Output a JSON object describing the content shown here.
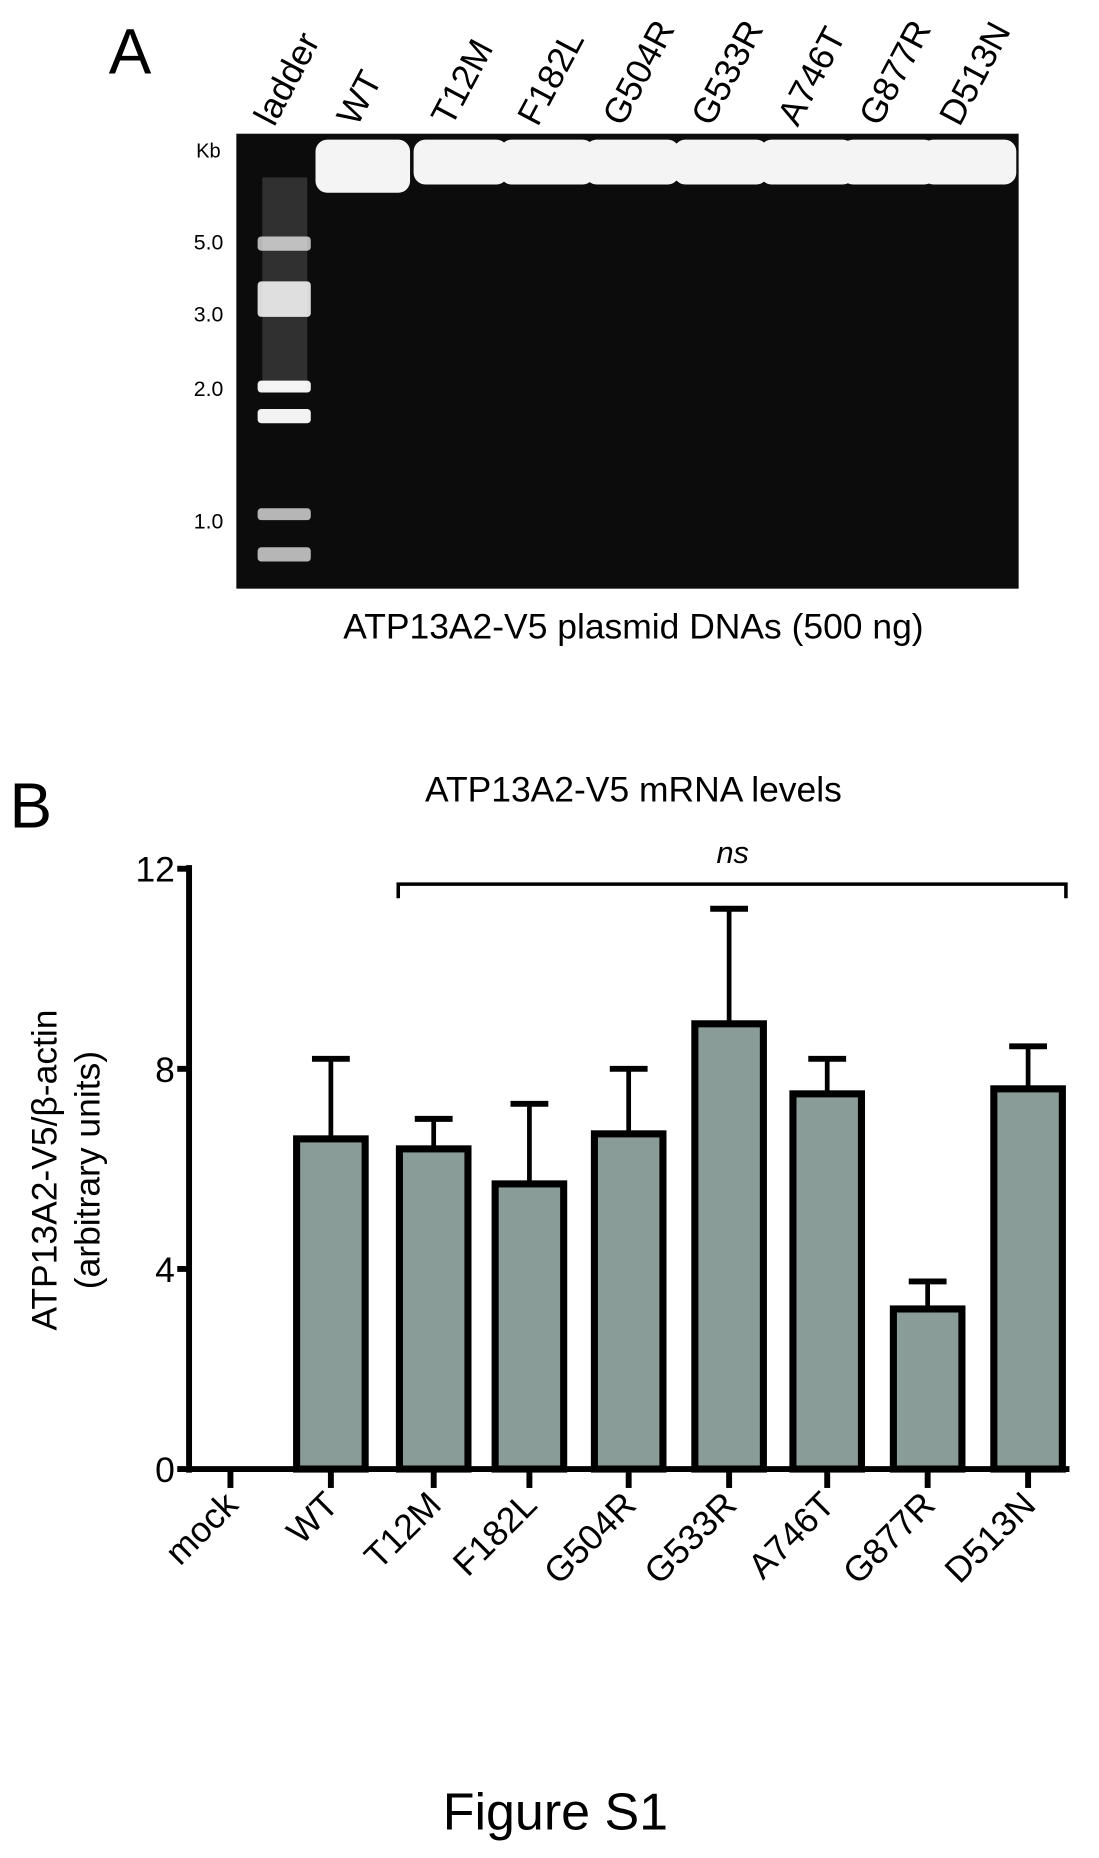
{
  "panel_a": {
    "label": "A",
    "lane_labels": [
      "ladder",
      "WT",
      "T12M",
      "F182L",
      "G504R",
      "G533R",
      "A746T",
      "G877R",
      "D513N"
    ],
    "size_unit": "Kb",
    "size_markers": [
      "5.0",
      "3.0",
      "2.0",
      "1.0"
    ],
    "caption": "ATP13A2-V5 plasmid DNAs (500 ng)"
  },
  "chart_data": {
    "type": "bar",
    "panel_label": "B",
    "title": "ATP13A2-V5 mRNA levels",
    "ylabel": "ATP13A2-V5/β-actin",
    "ylabel2": "(arbitrary units)",
    "xlabel": "",
    "categories": [
      "mock",
      "WT",
      "T12M",
      "F182L",
      "G504R",
      "G533R",
      "A746T",
      "G877R",
      "D513N"
    ],
    "values": [
      0,
      6.6,
      6.4,
      5.7,
      6.7,
      8.9,
      7.5,
      3.2,
      7.6
    ],
    "errors": [
      0,
      1.6,
      0.6,
      1.6,
      1.3,
      2.3,
      0.7,
      0.55,
      0.85
    ],
    "ylim": [
      0,
      12
    ],
    "yticks": [
      "0",
      "4",
      "8",
      "12"
    ],
    "annotation": "ns",
    "bar_color": "#8a9c98",
    "grid": false
  },
  "figure_label": "Figure S1"
}
